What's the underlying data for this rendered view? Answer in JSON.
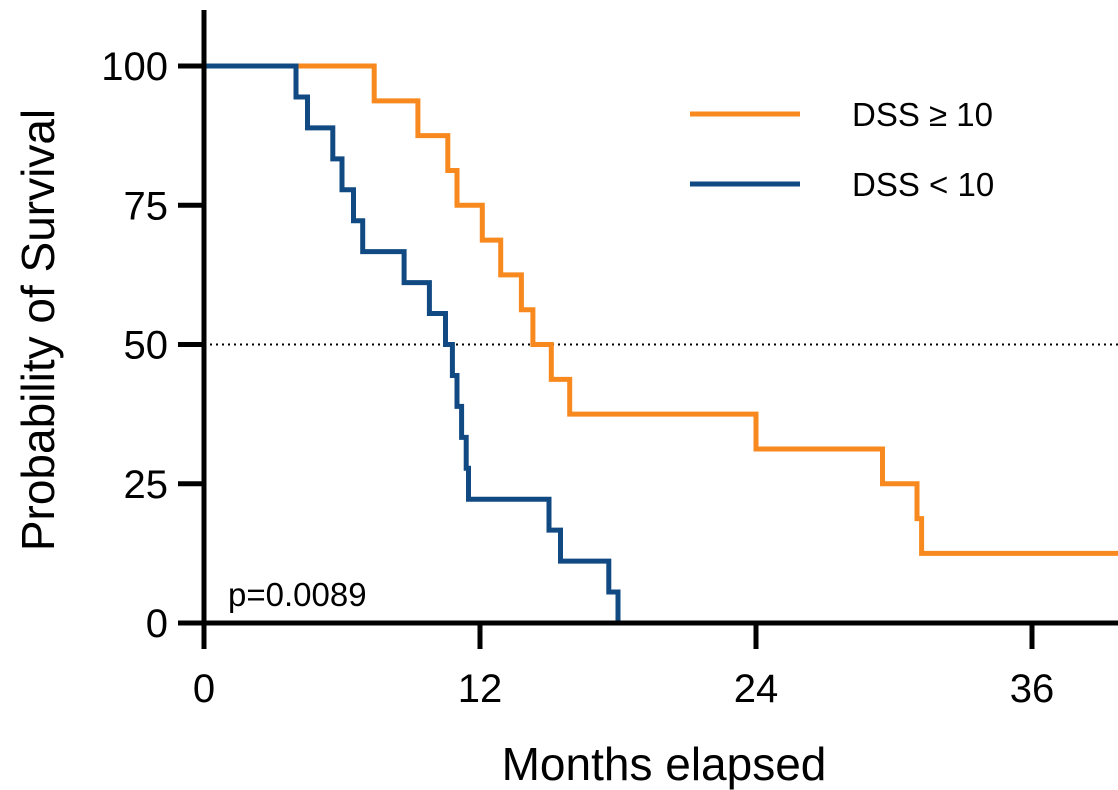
{
  "chart_data": {
    "type": "line",
    "step": true,
    "xlabel": "Months elapsed",
    "ylabel": "Probability of Survival",
    "xlim": [
      0,
      40
    ],
    "ylim": [
      0,
      110
    ],
    "xticks": [
      0,
      12,
      24,
      36
    ],
    "yticks": [
      0,
      25,
      50,
      75,
      100
    ],
    "reference_line_y": 50,
    "legend_position": "top-right",
    "annotation": "p=0.0089",
    "series": [
      {
        "name": "DSS ≥ 10",
        "color": "#F7891F",
        "x": [
          0,
          7.4,
          9.3,
          10.6,
          11.0,
          12.1,
          12.9,
          13.8,
          14.3,
          15.1,
          15.9,
          24.0,
          29.5,
          31.0,
          31.2,
          40.0
        ],
        "y": [
          100,
          93.75,
          87.5,
          81.25,
          75.0,
          68.75,
          62.5,
          56.25,
          50.0,
          43.75,
          37.5,
          31.25,
          25.0,
          18.75,
          12.5,
          6.25
        ]
      },
      {
        "name": "DSS < 10",
        "color": "#114A82",
        "x": [
          0,
          4.0,
          4.5,
          5.6,
          6.0,
          6.5,
          6.9,
          7.1,
          8.7,
          9.8,
          10.5,
          10.8,
          11.0,
          11.2,
          11.4,
          11.5,
          12.0,
          15.0,
          15.5,
          17.6,
          18.0,
          18.4
        ],
        "y": [
          100,
          94.44,
          88.89,
          83.33,
          77.78,
          72.22,
          66.67,
          66.67,
          61.11,
          55.56,
          50.0,
          44.44,
          38.89,
          33.33,
          27.78,
          22.22,
          22.22,
          16.67,
          11.11,
          5.56,
          0,
          0
        ]
      }
    ]
  }
}
